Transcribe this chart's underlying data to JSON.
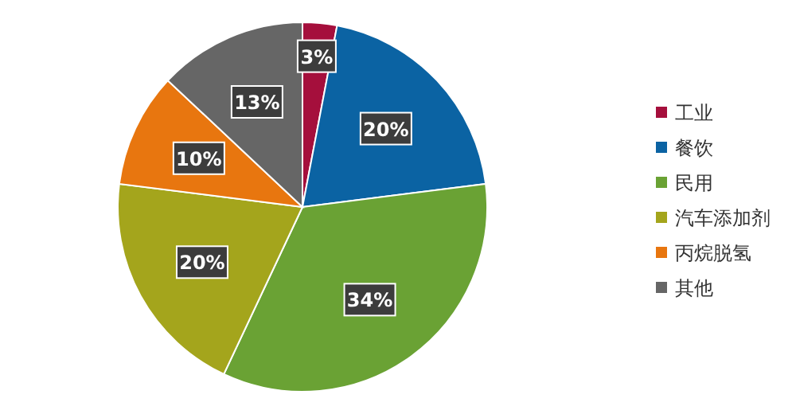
{
  "chart_data": {
    "type": "pie",
    "categories": [
      "工业",
      "餐饮",
      "民用",
      "汽车添加剂",
      "丙烷脱氢",
      "其他"
    ],
    "values": [
      3,
      20,
      34,
      20,
      10,
      13
    ],
    "colors": [
      "#a50f3c",
      "#0b63a3",
      "#6aa234",
      "#a4a51c",
      "#e8760f",
      "#666666"
    ],
    "value_labels": [
      "3%",
      "20%",
      "34%",
      "20%",
      "10%",
      "13%"
    ],
    "legend": "right"
  }
}
